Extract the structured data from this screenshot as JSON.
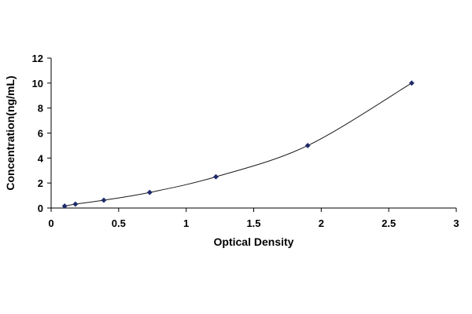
{
  "chart_data": {
    "type": "scatter",
    "title": "",
    "xlabel": "Optical Density",
    "ylabel": "Concentration(ng/mL)",
    "xlim": [
      0,
      3
    ],
    "ylim": [
      0,
      12
    ],
    "x_ticks": [
      "0",
      "0.5",
      "1",
      "1.5",
      "2",
      "2.5",
      "3"
    ],
    "y_ticks": [
      "0",
      "2",
      "4",
      "6",
      "8",
      "10",
      "12"
    ],
    "grid": false,
    "legend": "none",
    "series": [
      {
        "x": [
          0.1,
          0.18,
          0.39,
          0.73,
          1.22,
          1.9,
          2.67
        ],
        "y": [
          0.156,
          0.312,
          0.625,
          1.25,
          2.5,
          5,
          10
        ],
        "marker": "diamond",
        "color": "#1f2a6b",
        "trendline": "smooth-curve"
      }
    ]
  }
}
